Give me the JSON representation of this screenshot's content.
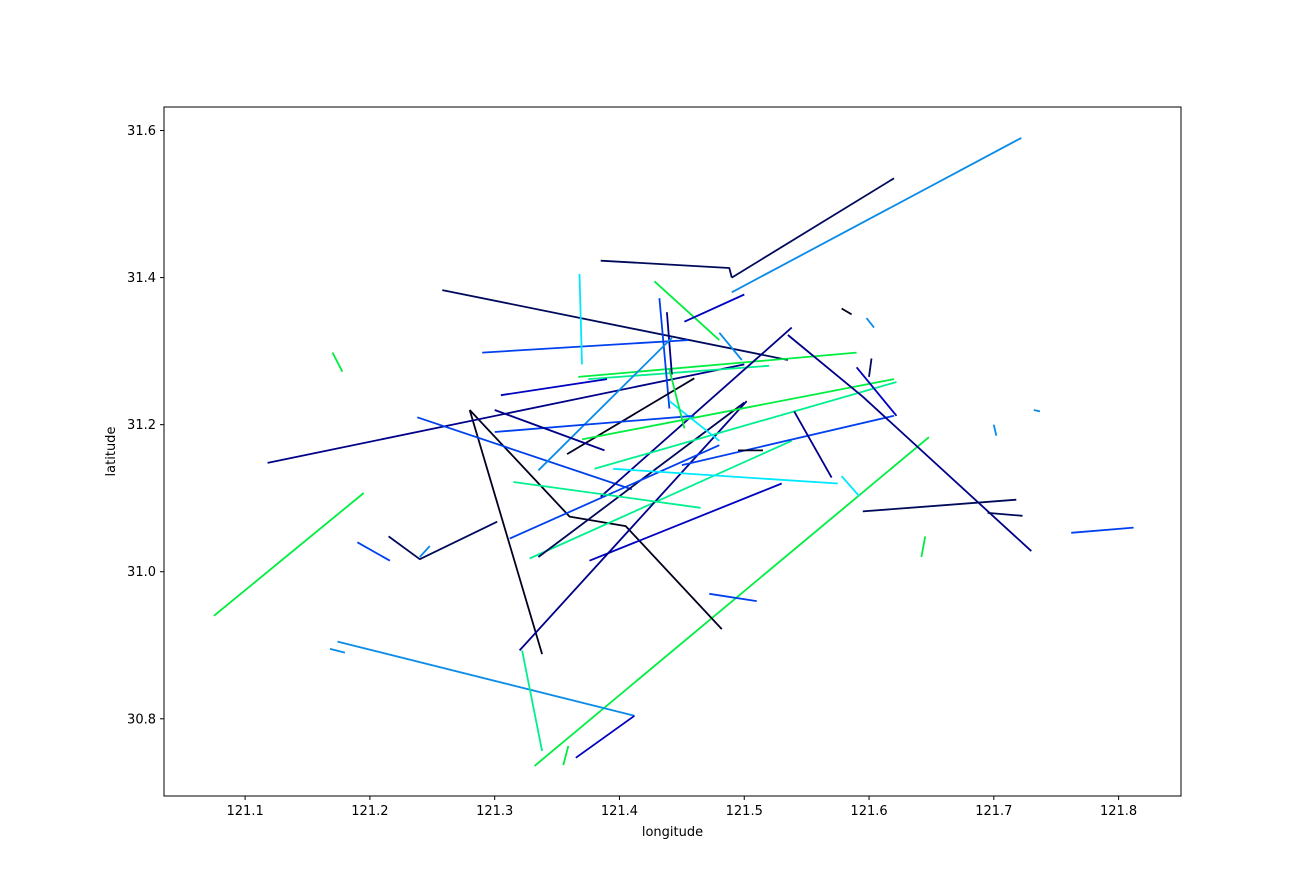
{
  "chart_data": {
    "type": "line",
    "title": "",
    "xlabel": "longitude",
    "ylabel": "latitude",
    "xlim": [
      121.035,
      121.85
    ],
    "ylim": [
      30.695,
      31.632
    ],
    "xticks": [
      "121.1",
      "121.2",
      "121.3",
      "121.4",
      "121.5",
      "121.6",
      "121.7",
      "121.8"
    ],
    "yticks": [
      "30.8",
      "31.0",
      "31.2",
      "31.4",
      "31.6"
    ],
    "grid": false,
    "legend": "none",
    "colormap": "gist_ncar-like (black, navy, blue, cyan, green)",
    "series": [
      {
        "color": "#0b8be8",
        "points": [
          [
            121.49,
            31.38
          ],
          [
            121.722,
            31.59
          ]
        ]
      },
      {
        "color": "#000a5a",
        "points": [
          [
            121.49,
            31.4
          ],
          [
            121.62,
            31.535
          ]
        ]
      },
      {
        "color": "#000a5a",
        "points": [
          [
            121.385,
            31.423
          ],
          [
            121.488,
            31.413
          ],
          [
            121.49,
            31.4
          ]
        ]
      },
      {
        "color": "#00ee40",
        "points": [
          [
            121.332,
            30.736
          ],
          [
            121.648,
            31.183
          ]
        ]
      },
      {
        "color": "#00ee40",
        "points": [
          [
            121.075,
            30.94
          ],
          [
            121.195,
            31.107
          ]
        ]
      },
      {
        "color": "#0b8be8",
        "points": [
          [
            121.174,
            30.905
          ],
          [
            121.412,
            30.804
          ]
        ]
      },
      {
        "color": "#0000c0",
        "points": [
          [
            121.412,
            30.804
          ],
          [
            121.365,
            30.747
          ]
        ]
      },
      {
        "color": "#0b8be8",
        "points": [
          [
            121.168,
            30.895
          ],
          [
            121.18,
            30.89
          ]
        ]
      },
      {
        "color": "#00f090",
        "points": [
          [
            121.322,
            30.893
          ],
          [
            121.338,
            30.756
          ]
        ]
      },
      {
        "color": "#00ee40",
        "points": [
          [
            121.359,
            30.763
          ],
          [
            121.355,
            30.737
          ]
        ]
      },
      {
        "color": "#000020",
        "points": [
          [
            121.28,
            31.22
          ],
          [
            121.338,
            30.888
          ]
        ]
      },
      {
        "color": "#000020",
        "points": [
          [
            121.28,
            31.22
          ],
          [
            121.36,
            31.075
          ],
          [
            121.405,
            31.062
          ],
          [
            121.482,
            30.922
          ]
        ]
      },
      {
        "color": "#000088",
        "points": [
          [
            121.118,
            31.148
          ],
          [
            121.46,
            31.268
          ],
          [
            121.5,
            31.282
          ]
        ]
      },
      {
        "color": "#000a5a",
        "points": [
          [
            121.258,
            31.383
          ],
          [
            121.535,
            31.288
          ]
        ]
      },
      {
        "color": "#0040ee",
        "points": [
          [
            121.238,
            31.21
          ],
          [
            121.41,
            31.112
          ]
        ]
      },
      {
        "color": "#00ee40",
        "points": [
          [
            121.367,
            31.265
          ],
          [
            121.59,
            31.298
          ]
        ]
      },
      {
        "color": "#00f090",
        "points": [
          [
            121.375,
            31.262
          ],
          [
            121.52,
            31.28
          ]
        ]
      },
      {
        "color": "#0040ee",
        "points": [
          [
            121.29,
            31.298
          ],
          [
            121.455,
            31.315
          ]
        ]
      },
      {
        "color": "#00e8ff",
        "points": [
          [
            121.368,
            31.405
          ],
          [
            121.37,
            31.282
          ]
        ]
      },
      {
        "color": "#0040ee",
        "points": [
          [
            121.432,
            31.372
          ],
          [
            121.44,
            31.222
          ]
        ]
      },
      {
        "color": "#000088",
        "points": [
          [
            121.438,
            31.353
          ],
          [
            121.442,
            31.268
          ]
        ]
      },
      {
        "color": "#00ee40",
        "points": [
          [
            121.428,
            31.395
          ],
          [
            121.48,
            31.315
          ]
        ]
      },
      {
        "color": "#0000c0",
        "points": [
          [
            121.452,
            31.34
          ],
          [
            121.5,
            31.377
          ]
        ]
      },
      {
        "color": "#0b8be8",
        "points": [
          [
            121.335,
            31.138
          ],
          [
            121.442,
            31.318
          ]
        ]
      },
      {
        "color": "#000020",
        "points": [
          [
            121.358,
            31.16
          ],
          [
            121.46,
            31.263
          ]
        ]
      },
      {
        "color": "#000088",
        "points": [
          [
            121.385,
            31.102
          ],
          [
            121.538,
            31.332
          ]
        ]
      },
      {
        "color": "#00f090",
        "points": [
          [
            121.328,
            31.018
          ],
          [
            121.538,
            31.178
          ]
        ]
      },
      {
        "color": "#000a5a",
        "points": [
          [
            121.335,
            31.02
          ],
          [
            121.5,
            31.23
          ]
        ]
      },
      {
        "color": "#0000c0",
        "points": [
          [
            121.376,
            31.015
          ],
          [
            121.53,
            31.12
          ]
        ]
      },
      {
        "color": "#000088",
        "points": [
          [
            121.32,
            30.893
          ],
          [
            121.502,
            31.232
          ]
        ]
      },
      {
        "color": "#00ee40",
        "points": [
          [
            121.37,
            31.18
          ],
          [
            121.62,
            31.262
          ]
        ]
      },
      {
        "color": "#00f090",
        "points": [
          [
            121.38,
            31.14
          ],
          [
            121.622,
            31.258
          ]
        ]
      },
      {
        "color": "#0040ee",
        "points": [
          [
            121.312,
            31.045
          ],
          [
            121.48,
            31.172
          ]
        ]
      },
      {
        "color": "#00e8ff",
        "points": [
          [
            121.395,
            31.14
          ],
          [
            121.575,
            31.12
          ]
        ]
      },
      {
        "color": "#00f090",
        "points": [
          [
            121.315,
            31.122
          ],
          [
            121.465,
            31.087
          ]
        ]
      },
      {
        "color": "#0040ee",
        "points": [
          [
            121.45,
            31.145
          ],
          [
            121.62,
            31.212
          ]
        ]
      },
      {
        "color": "#000088",
        "points": [
          [
            121.535,
            31.322
          ],
          [
            121.595,
            31.238
          ],
          [
            121.73,
            31.028
          ]
        ]
      },
      {
        "color": "#0000c0",
        "points": [
          [
            121.59,
            31.278
          ],
          [
            121.622,
            31.212
          ]
        ]
      },
      {
        "color": "#000088",
        "points": [
          [
            121.54,
            31.218
          ],
          [
            121.57,
            31.128
          ]
        ]
      },
      {
        "color": "#000a5a",
        "points": [
          [
            121.595,
            31.082
          ],
          [
            121.718,
            31.098
          ]
        ]
      },
      {
        "color": "#000a5a",
        "points": [
          [
            121.695,
            31.08
          ],
          [
            121.723,
            31.076
          ]
        ]
      },
      {
        "color": "#0040ee",
        "points": [
          [
            121.762,
            31.053
          ],
          [
            121.812,
            31.06
          ]
        ]
      },
      {
        "color": "#0040ee",
        "points": [
          [
            121.472,
            30.97
          ],
          [
            121.51,
            30.96
          ]
        ]
      },
      {
        "color": "#000a5a",
        "points": [
          [
            121.215,
            31.048
          ],
          [
            121.24,
            31.017
          ],
          [
            121.302,
            31.068
          ]
        ]
      },
      {
        "color": "#0040ee",
        "points": [
          [
            121.19,
            31.04
          ],
          [
            121.216,
            31.015
          ]
        ]
      },
      {
        "color": "#0b8be8",
        "points": [
          [
            121.24,
            31.02
          ],
          [
            121.248,
            31.035
          ]
        ]
      },
      {
        "color": "#00ee40",
        "points": [
          [
            121.17,
            31.298
          ],
          [
            121.178,
            31.272
          ]
        ]
      },
      {
        "color": "#00e8ff",
        "points": [
          [
            121.578,
            31.13
          ],
          [
            121.592,
            31.103
          ]
        ]
      },
      {
        "color": "#0b8be8",
        "points": [
          [
            121.598,
            31.345
          ],
          [
            121.604,
            31.332
          ]
        ]
      },
      {
        "color": "#000020",
        "points": [
          [
            121.578,
            31.358
          ],
          [
            121.586,
            31.35
          ]
        ]
      },
      {
        "color": "#000a5a",
        "points": [
          [
            121.602,
            31.29
          ],
          [
            121.6,
            31.265
          ]
        ]
      },
      {
        "color": "#0b8be8",
        "points": [
          [
            121.7,
            31.2
          ],
          [
            121.702,
            31.185
          ]
        ]
      },
      {
        "color": "#0b8be8",
        "points": [
          [
            121.732,
            31.22
          ],
          [
            121.737,
            31.218
          ]
        ]
      },
      {
        "color": "#00ee40",
        "points": [
          [
            121.645,
            31.048
          ],
          [
            121.642,
            31.02
          ]
        ]
      },
      {
        "color": "#000020",
        "points": [
          [
            121.495,
            31.165
          ],
          [
            121.515,
            31.165
          ]
        ]
      },
      {
        "color": "#0b8be8",
        "points": [
          [
            121.48,
            31.325
          ],
          [
            121.498,
            31.288
          ]
        ]
      },
      {
        "color": "#00e8ff",
        "points": [
          [
            121.44,
            31.232
          ],
          [
            121.48,
            31.178
          ]
        ]
      },
      {
        "color": "#0040ee",
        "points": [
          [
            121.3,
            31.19
          ],
          [
            121.46,
            31.212
          ]
        ]
      },
      {
        "color": "#000088",
        "points": [
          [
            121.3,
            31.22
          ],
          [
            121.388,
            31.165
          ]
        ]
      },
      {
        "color": "#0000c0",
        "points": [
          [
            121.305,
            31.24
          ],
          [
            121.39,
            31.262
          ]
        ]
      },
      {
        "color": "#00ee40",
        "points": [
          [
            121.44,
            31.275
          ],
          [
            121.452,
            31.195
          ]
        ]
      }
    ]
  }
}
